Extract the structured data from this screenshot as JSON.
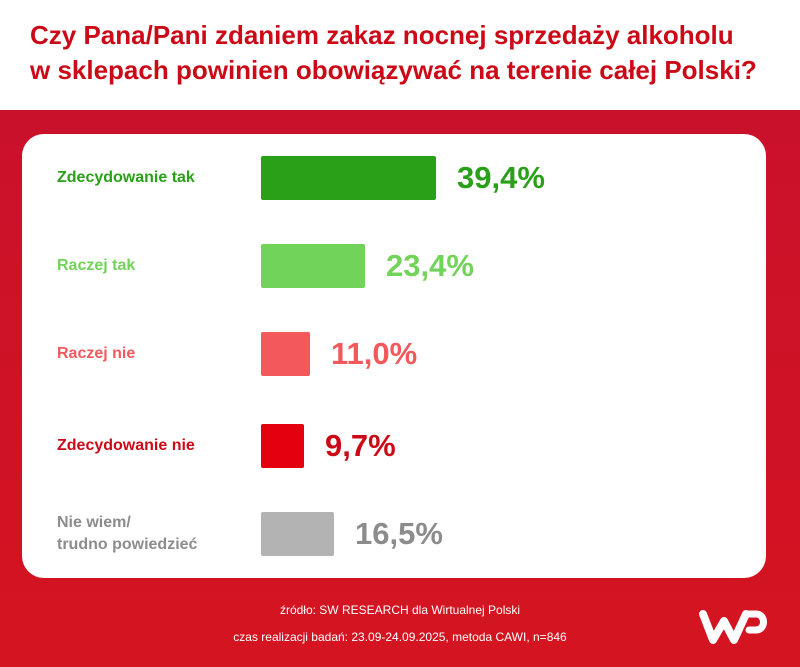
{
  "title": {
    "line1": "Czy Pana/Pani zdaniem zakaz nocnej sprzedaży alkoholu",
    "line2": "w sklepach powinien obowiązywać na terenie całej Polski?"
  },
  "chart_data": {
    "type": "bar",
    "orientation": "horizontal",
    "categories": [
      "Zdecydowanie tak",
      "Raczej tak",
      "Raczej nie",
      "Zdecydowanie nie",
      "Nie wiem/\ntrudno powiedzieć"
    ],
    "values": [
      39.4,
      23.4,
      11.0,
      9.7,
      16.5
    ],
    "value_labels": [
      "39,4%",
      "23,4%",
      "11,0%",
      "9,7%",
      "16,5%"
    ],
    "unit": "%",
    "colors": [
      "#2aa019",
      "#72d35a",
      "#f2595c",
      "#e3000f",
      "#b3b3b3"
    ],
    "title": "Czy Pana/Pani zdaniem zakaz nocnej sprzedaży alkoholu w sklepach powinien obowiązywać na terenie całej Polski?",
    "xlim": [
      0,
      39.4
    ],
    "grid": false,
    "legend": "none"
  },
  "footer": {
    "source": "źródło: SW RESEARCH dla Wirtualnej Polski",
    "method": "czas realizacji badań: 23.09-24.09.2025, metoda CAWI, n=846"
  },
  "logo": {
    "name": "wp-logo-icon",
    "color": "#ffffff"
  }
}
